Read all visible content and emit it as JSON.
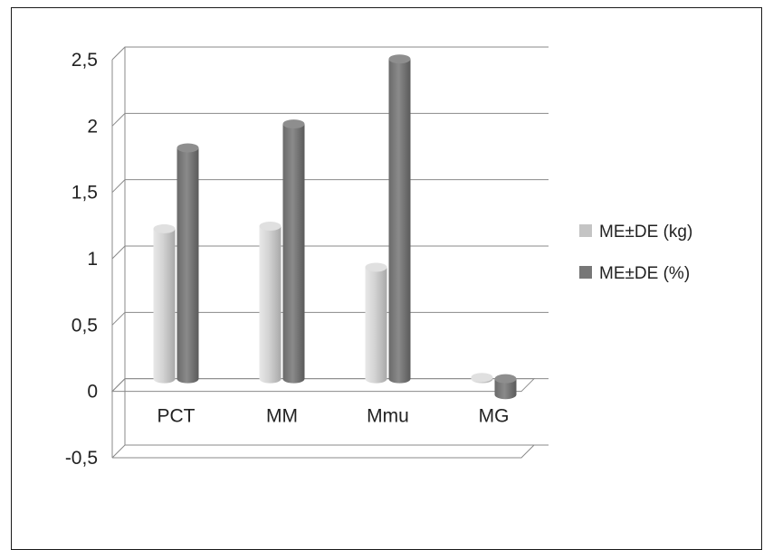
{
  "chart_data": {
    "type": "bar",
    "title": "",
    "xlabel": "",
    "ylabel": "",
    "categories": [
      "PCT",
      "MM",
      "Mmu",
      "MG"
    ],
    "series": [
      {
        "name": "ME±DE (kg)",
        "values": [
          1.13,
          1.15,
          0.84,
          0.01
        ],
        "color": "#c8c8c8"
      },
      {
        "name": "ME±DE (%)",
        "values": [
          1.74,
          1.92,
          2.41,
          -0.12
        ],
        "color": "#7a7a7a"
      }
    ],
    "ylim": [
      -0.5,
      2.5
    ],
    "yticks": [
      -0.5,
      0,
      0.5,
      1,
      1.5,
      2,
      2.5
    ],
    "ytick_labels": [
      "-0,5",
      "0",
      "0,5",
      "1",
      "1,5",
      "2",
      "2,5"
    ],
    "grid": true,
    "legend_position": "right",
    "style": "3d-cylinder"
  }
}
